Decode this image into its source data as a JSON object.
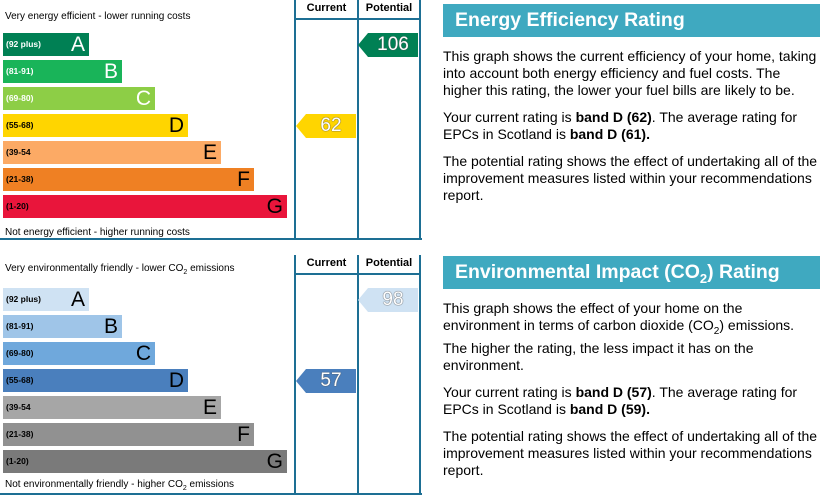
{
  "energy_chart": {
    "header_current": "Current",
    "header_potential": "Potential",
    "top_note": "Very energy efficient - lower running costs",
    "bottom_note": "Not energy efficient - higher running costs",
    "bands": [
      {
        "range": "(92 plus)",
        "letter": "A",
        "color": "#008054",
        "text_color": "#ffffff"
      },
      {
        "range": "(81-91)",
        "letter": "B",
        "color": "#19b459",
        "text_color": "#ffffff"
      },
      {
        "range": "(69-80)",
        "letter": "C",
        "color": "#8dce46",
        "text_color": "#ffffff"
      },
      {
        "range": "(55-68)",
        "letter": "D",
        "color": "#ffd500",
        "text_color": "#000000"
      },
      {
        "range": "(39-54",
        "letter": "E",
        "color": "#fcaa65",
        "text_color": "#000000"
      },
      {
        "range": "(21-38)",
        "letter": "F",
        "color": "#ef8023",
        "text_color": "#000000"
      },
      {
        "range": "(1-20)",
        "letter": "G",
        "color": "#e9153b",
        "text_color": "#000000"
      }
    ],
    "current": {
      "value": "62",
      "band_index": 3,
      "color": "#ffd500",
      "text_color": "#ffffff"
    },
    "potential": {
      "value": "106",
      "band_index": 0,
      "color": "#008054",
      "text_color": "#ffffff"
    }
  },
  "environment_chart": {
    "header_current": "Current",
    "header_potential": "Potential",
    "top_note": "Very environmentally friendly - lower CO",
    "top_note_sub": "2",
    "top_note_tail": " emissions",
    "bottom_note": "Not environmentally friendly - higher CO",
    "bottom_note_sub": "2",
    "bottom_note_tail": " emissions",
    "bands": [
      {
        "range": "(92 plus)",
        "letter": "A",
        "color": "#cfe2f3",
        "text_color": "#000000"
      },
      {
        "range": "(81-91)",
        "letter": "B",
        "color": "#9fc5e8",
        "text_color": "#000000"
      },
      {
        "range": "(69-80)",
        "letter": "C",
        "color": "#6fa8dc",
        "text_color": "#000000"
      },
      {
        "range": "(55-68)",
        "letter": "D",
        "color": "#4a7fbd",
        "text_color": "#000000"
      },
      {
        "range": "(39-54",
        "letter": "E",
        "color": "#a6a6a6",
        "text_color": "#000000"
      },
      {
        "range": "(21-38)",
        "letter": "F",
        "color": "#919191",
        "text_color": "#000000"
      },
      {
        "range": "(1-20)",
        "letter": "G",
        "color": "#7a7a7a",
        "text_color": "#000000"
      }
    ],
    "current": {
      "value": "57",
      "band_index": 3,
      "color": "#4a7fbd",
      "text_color": "#ffffff"
    },
    "potential": {
      "value": "98",
      "band_index": 0,
      "color": "#cfe2f3",
      "text_color": "#ffffff"
    }
  },
  "energy_panel": {
    "title": "Energy Efficiency Rating",
    "p1": "This graph shows the current efficiency of your home, taking into account both energy efficiency and fuel costs. The higher this rating, the lower your fuel bills are likely to be.",
    "p2_a": "Your current rating is ",
    "p2_b": "band D (62)",
    "p2_c": ". The average rating for EPCs in Scotland is ",
    "p2_d": "band D (61).",
    "p3": "The potential rating shows the effect of undertaking all of the improvement measures listed within your recommendations report."
  },
  "environment_panel": {
    "title_a": "Environmental Impact (CO",
    "title_sub": "2",
    "title_b": ") Rating",
    "p1_a": "This graph shows the effect of your home on the environment in terms of carbon dioxide (CO",
    "p1_sub": "2",
    "p1_b": ") emissions. The higher the rating, the less impact it has on the environment.",
    "p2_a": "Your current rating is ",
    "p2_b": "band D (57)",
    "p2_c": ". The average rating for EPCs in Scotland is ",
    "p2_d": "band D (59).",
    "p3": "The potential rating shows the effect of undertaking all of the improvement measures listed within your recommendations report."
  }
}
